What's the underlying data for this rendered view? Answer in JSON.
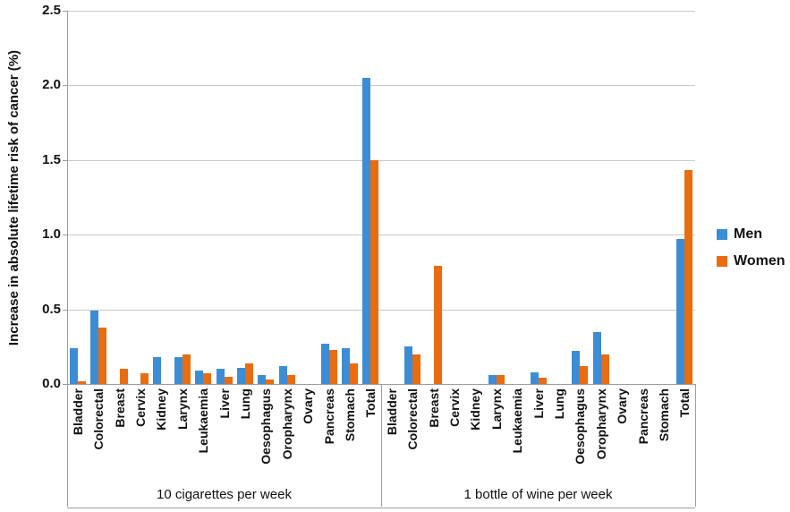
{
  "chart_data": {
    "type": "bar",
    "title": "",
    "ylabel": "Increase in absolute lifetime risk of cancer (%)",
    "xlabel": "",
    "ylim": [
      0,
      2.5
    ],
    "ytick_step": 0.5,
    "ytick_labels": [
      "0.0",
      "0.5",
      "1.0",
      "1.5",
      "2.0",
      "2.5"
    ],
    "grid": true,
    "legend_position": "right",
    "legend": [
      {
        "name": "Men",
        "color": "#3C8DD5"
      },
      {
        "name": "Women",
        "color": "#E96C11"
      }
    ],
    "categories": [
      "Bladder",
      "Colorectal",
      "Breast",
      "Cervix",
      "Kidney",
      "Larynx",
      "Leukaemia",
      "Liver",
      "Lung",
      "Oesophagus",
      "Oropharynx",
      "Ovary",
      "Pancreas",
      "Stomach",
      "Total"
    ],
    "groups": [
      {
        "label": "10 cigarettes per week",
        "men": [
          0.24,
          0.49,
          0,
          0,
          0.18,
          0.18,
          0.09,
          0.1,
          0.11,
          0.06,
          0.12,
          0,
          0.27,
          0.24,
          2.05
        ],
        "women": [
          0.02,
          0.38,
          0.1,
          0.07,
          0,
          0.2,
          0.07,
          0.05,
          0.14,
          0.03,
          0.06,
          0,
          0.23,
          0.14,
          1.5
        ]
      },
      {
        "label": "1 bottle of wine per week",
        "men": [
          0,
          0.25,
          0,
          0,
          0,
          0.06,
          0,
          0.08,
          0,
          0.22,
          0.35,
          0,
          0,
          0,
          0.97
        ],
        "women": [
          0,
          0.2,
          0.79,
          0,
          0,
          0.06,
          0,
          0.04,
          0,
          0.12,
          0.2,
          0,
          0,
          0,
          1.43
        ]
      }
    ],
    "colors": {
      "gridline": "#C9C9C9",
      "axis": "#9E9E9E",
      "text": "#111111"
    }
  }
}
